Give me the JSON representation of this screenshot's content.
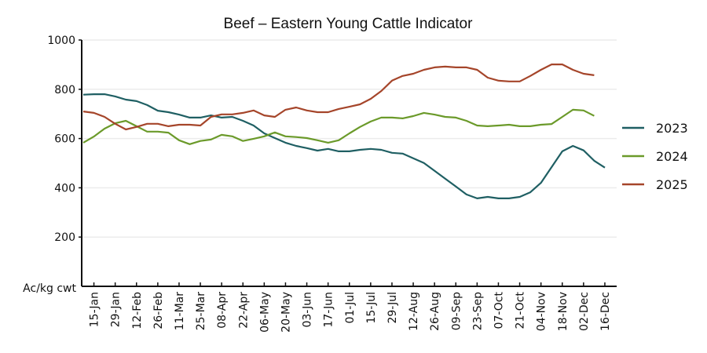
{
  "chart_data": {
    "type": "line",
    "title": "Beef – Eastern Young Cattle Indicator",
    "xlabel": "",
    "ylabel": "Ac/kg cwt",
    "ylim": [
      0,
      1000
    ],
    "yticks": [
      200,
      400,
      600,
      800,
      1000
    ],
    "grid": true,
    "legend_position": "right",
    "x_tick_labels": [
      "15-Jan",
      "29-Jan",
      "12-Feb",
      "26-Feb",
      "11-Mar",
      "25-Mar",
      "08-Apr",
      "22-Apr",
      "06-May",
      "20-May",
      "03-Jun",
      "17-Jun",
      "01-Jul",
      "15-Jul",
      "29-Jul",
      "12-Aug",
      "26-Aug",
      "09-Sep",
      "23-Sep",
      "07-Oct",
      "21-Oct",
      "04-Nov",
      "18-Nov",
      "02-Dec",
      "16-Dec"
    ],
    "x_unit": "week of year (week 1 = 08-Jan, tick every 2 weeks starting week 2)",
    "series": [
      {
        "name": "2023",
        "color": "#1f5f63",
        "start_week": 1,
        "values": [
          778,
          780,
          780,
          771,
          758,
          752,
          736,
          713,
          707,
          697,
          685,
          685,
          694,
          685,
          688,
          672,
          653,
          621,
          602,
          583,
          570,
          561,
          551,
          558,
          548,
          548,
          554,
          558,
          554,
          542,
          539,
          520,
          501,
          469,
          437,
          405,
          373,
          357,
          363,
          357,
          357,
          363,
          382,
          420,
          484,
          548,
          570,
          552,
          510,
          482
        ]
      },
      {
        "name": "2024",
        "color": "#6b9a2a",
        "start_week": 1,
        "values": [
          583,
          608,
          640,
          662,
          672,
          650,
          628,
          628,
          624,
          593,
          577,
          590,
          596,
          615,
          609,
          590,
          599,
          609,
          625,
          609,
          606,
          602,
          593,
          583,
          593,
          621,
          647,
          669,
          685,
          685,
          682,
          691,
          704,
          697,
          688,
          685,
          672,
          653,
          650,
          653,
          656,
          650,
          650,
          656,
          659,
          688,
          717,
          714,
          692
        ]
      },
      {
        "name": "2025",
        "color": "#a5452a",
        "start_week": 1,
        "values": [
          710,
          704,
          688,
          660,
          637,
          647,
          660,
          660,
          650,
          656,
          656,
          653,
          688,
          698,
          698,
          704,
          714,
          694,
          688,
          717,
          726,
          714,
          707,
          707,
          720,
          729,
          739,
          761,
          793,
          835,
          854,
          863,
          879,
          889,
          892,
          889,
          889,
          879,
          847,
          835,
          832,
          832,
          854,
          879,
          901,
          901,
          879,
          863,
          857
        ]
      }
    ]
  }
}
